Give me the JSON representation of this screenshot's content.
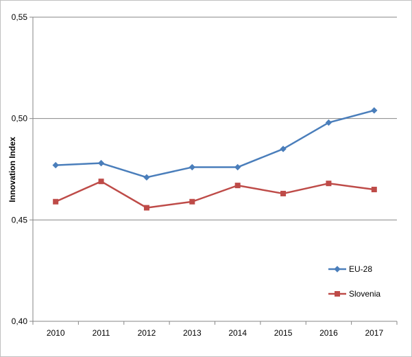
{
  "chart_data": {
    "type": "line",
    "title": "",
    "xlabel": "",
    "ylabel": "Innovation Index",
    "ylim": [
      0.4,
      0.55
    ],
    "yticks": [
      "0,40",
      "0,45",
      "0,50",
      "0,55"
    ],
    "ytick_values": [
      0.4,
      0.45,
      0.5,
      0.55
    ],
    "categories": [
      "2010",
      "2011",
      "2012",
      "2013",
      "2014",
      "2015",
      "2016",
      "2017"
    ],
    "series": [
      {
        "name": "EU-28",
        "color": "#4a7ebb",
        "marker": "diamond",
        "values": [
          0.477,
          0.478,
          0.471,
          0.476,
          0.476,
          0.485,
          0.498,
          0.504
        ]
      },
      {
        "name": "Slovenia",
        "color": "#be4b48",
        "marker": "square",
        "values": [
          0.459,
          0.469,
          0.456,
          0.459,
          0.467,
          0.463,
          0.468,
          0.465
        ]
      }
    ],
    "grid": "horizontal",
    "legend_position": "bottom-right"
  }
}
